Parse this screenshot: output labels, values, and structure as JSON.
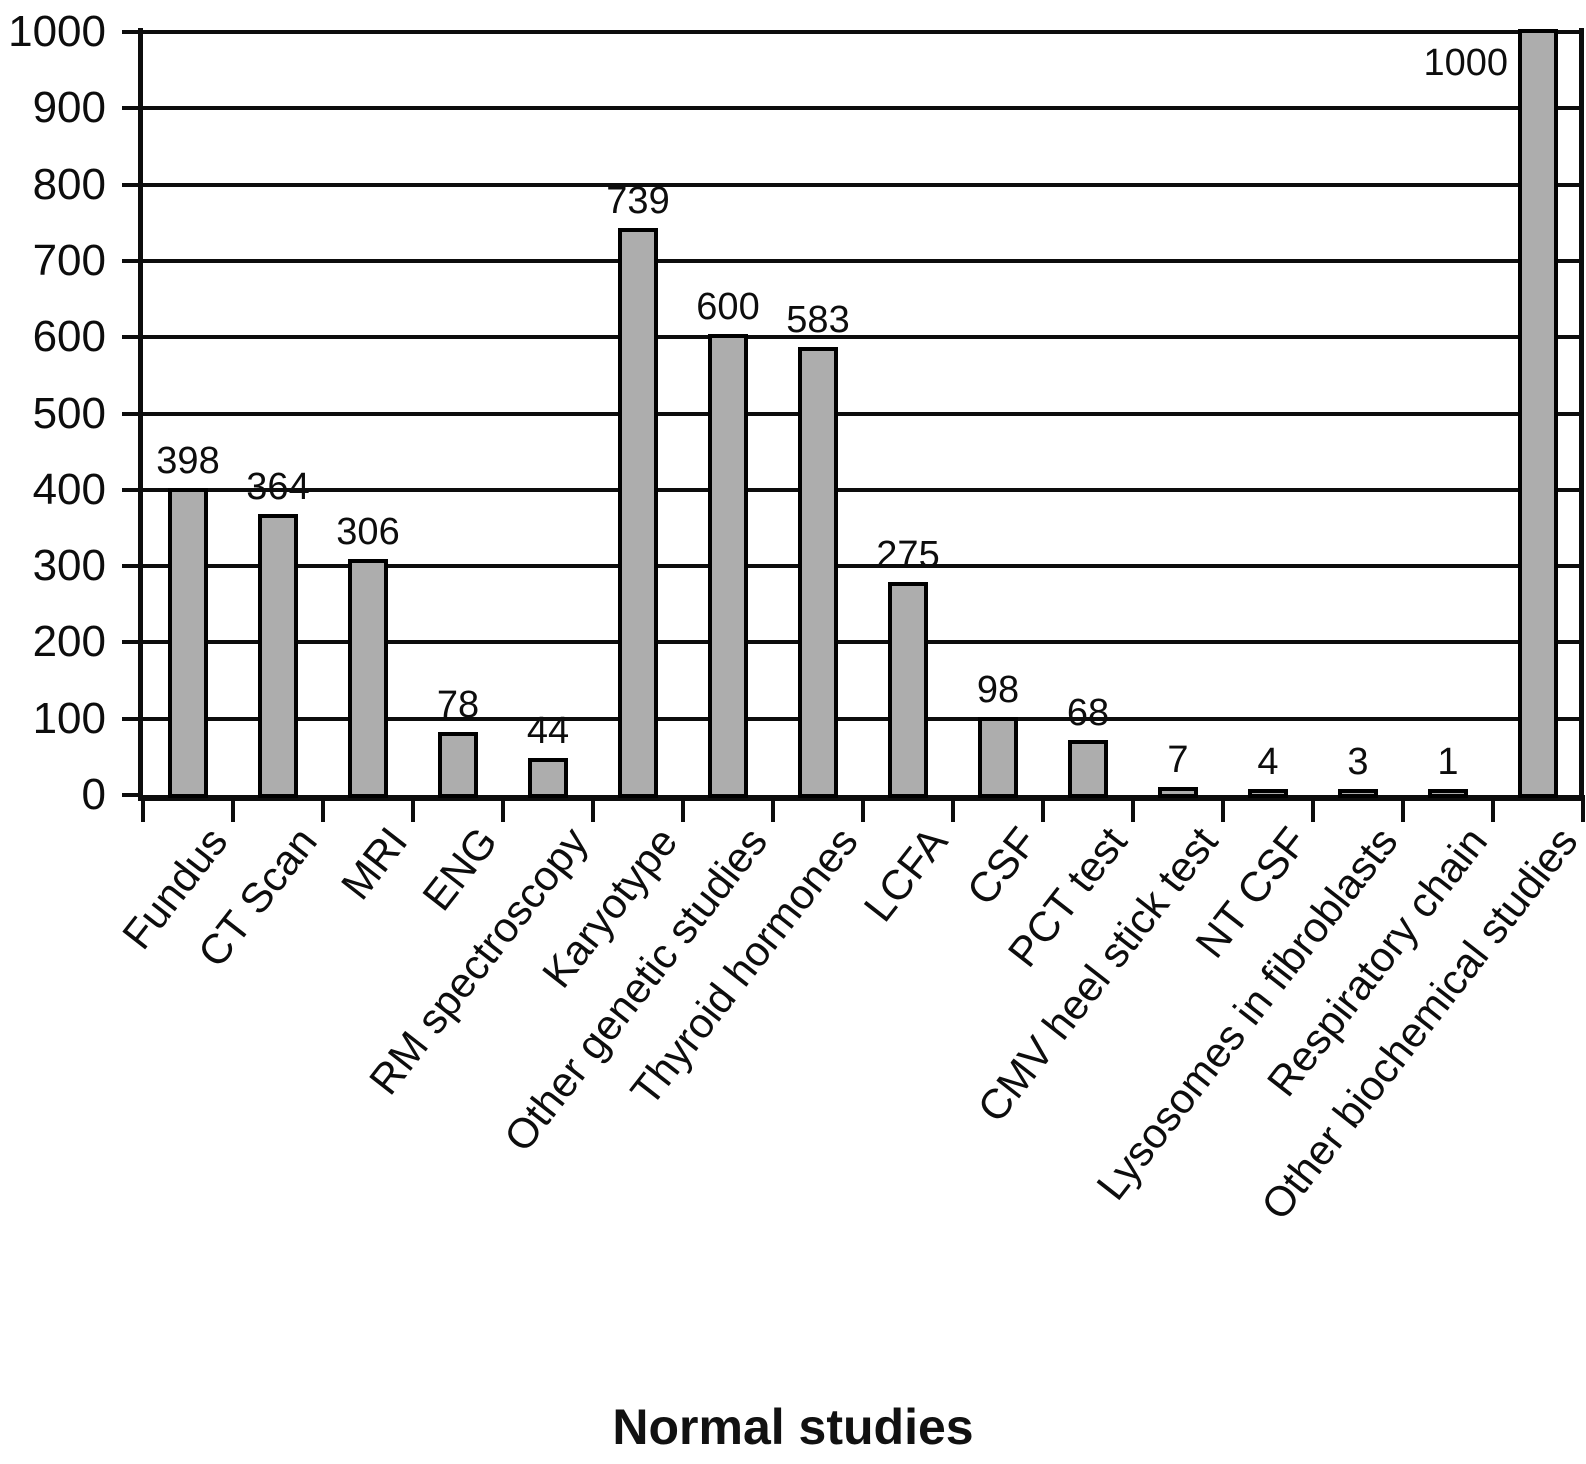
{
  "chart_data": {
    "type": "bar",
    "xlabel": "Normal studies",
    "ylabel": "",
    "categories": [
      "Fundus",
      "CT Scan",
      "MRI",
      "ENG",
      "RM spectroscopy",
      "Karyotype",
      "Other genetic studies",
      "Thyroid hormones",
      "LCFA",
      "CSF",
      "PCT test",
      "CMV heel stick test",
      "NT CSF",
      "Lysosomes in fibroblasts",
      "Respiratory chain",
      "Other biochemical studies"
    ],
    "values": [
      398,
      364,
      306,
      78,
      44,
      739,
      600,
      583,
      275,
      98,
      68,
      7,
      4,
      3,
      1,
      1000
    ],
    "yticks": [
      0,
      100,
      200,
      300,
      400,
      500,
      600,
      700,
      800,
      900,
      1000
    ],
    "ylim": [
      0,
      1000
    ],
    "grid": "horizontal",
    "legend": "none",
    "bar_fill": "#adadad",
    "bar_border": "#000000",
    "axis_color": "#0d0d0d"
  }
}
